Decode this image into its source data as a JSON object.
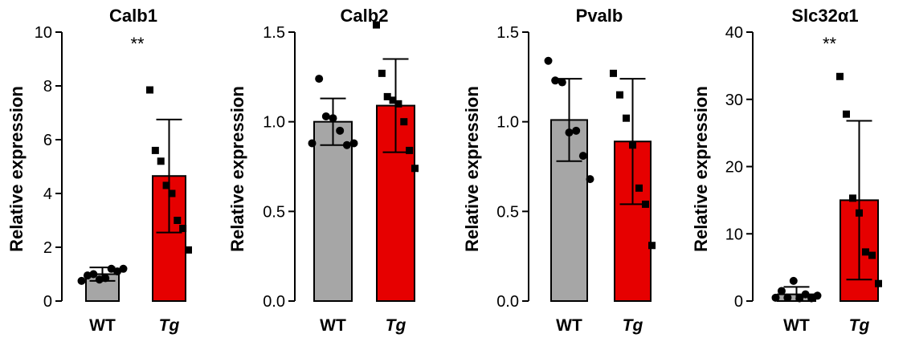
{
  "chart_data": [
    {
      "type": "bar",
      "title": "Calb1",
      "ylabel": "Relative expression",
      "categories": [
        "WT",
        "Tg"
      ],
      "values": [
        1.0,
        4.65
      ],
      "errors": [
        0.25,
        2.1
      ],
      "bar_colors": [
        "#a6a6a6",
        "#e60000"
      ],
      "ylim": [
        0,
        10
      ],
      "yticks": [
        0,
        2,
        4,
        6,
        8,
        10
      ],
      "ytick_labels": [
        "0",
        "2",
        "4",
        "6",
        "8",
        "10"
      ],
      "significance": "**",
      "points": [
        [
          0.75,
          0.95,
          1.0,
          0.8,
          0.85,
          1.2,
          1.1,
          1.2
        ],
        [
          7.85,
          5.6,
          5.2,
          4.3,
          4.0,
          3.0,
          2.7,
          1.9
        ]
      ]
    },
    {
      "type": "bar",
      "title": "Calb2",
      "ylabel": "Relative expression",
      "categories": [
        "WT",
        "Tg"
      ],
      "values": [
        1.0,
        1.09
      ],
      "errors": [
        0.13,
        0.26
      ],
      "bar_colors": [
        "#a6a6a6",
        "#e60000"
      ],
      "ylim": [
        0,
        1.5
      ],
      "yticks": [
        0,
        0.5,
        1.0,
        1.5
      ],
      "ytick_labels": [
        "0.0",
        "0.5",
        "1.0",
        "1.5"
      ],
      "significance": "",
      "points": [
        [
          0.88,
          1.24,
          1.03,
          1.02,
          0.95,
          0.87,
          0.88
        ],
        [
          1.54,
          1.27,
          1.14,
          1.12,
          1.1,
          1.0,
          0.84,
          0.74
        ]
      ]
    },
    {
      "type": "bar",
      "title": "Pvalb",
      "ylabel": "Relative expression",
      "categories": [
        "WT",
        "Tg"
      ],
      "values": [
        1.01,
        0.89
      ],
      "errors": [
        0.23,
        0.35
      ],
      "bar_colors": [
        "#a6a6a6",
        "#e60000"
      ],
      "ylim": [
        0,
        1.5
      ],
      "yticks": [
        0,
        0.5,
        1.0,
        1.5
      ],
      "ytick_labels": [
        "0.0",
        "0.5",
        "1.0",
        "1.5"
      ],
      "significance": "",
      "points": [
        [
          1.34,
          1.23,
          1.22,
          0.94,
          0.95,
          0.81,
          0.68
        ],
        [
          1.27,
          1.15,
          1.02,
          0.87,
          0.63,
          0.54,
          0.31
        ]
      ]
    },
    {
      "type": "bar",
      "title": "Slc32α1",
      "ylabel": "Relative expression",
      "categories": [
        "WT",
        "Tg"
      ],
      "values": [
        1.0,
        15.0
      ],
      "errors": [
        1.1,
        11.8
      ],
      "bar_colors": [
        "#a6a6a6",
        "#e60000"
      ],
      "ylim": [
        0,
        40
      ],
      "yticks": [
        0,
        10,
        20,
        30,
        40
      ],
      "ytick_labels": [
        "0",
        "10",
        "20",
        "30",
        "40"
      ],
      "significance": "**",
      "points": [
        [
          0.5,
          1.5,
          0.5,
          3.0,
          0.4,
          1.0,
          0.4,
          0.8
        ],
        [
          33.4,
          27.8,
          15.3,
          13.1,
          7.3,
          6.8,
          2.6
        ]
      ]
    }
  ]
}
